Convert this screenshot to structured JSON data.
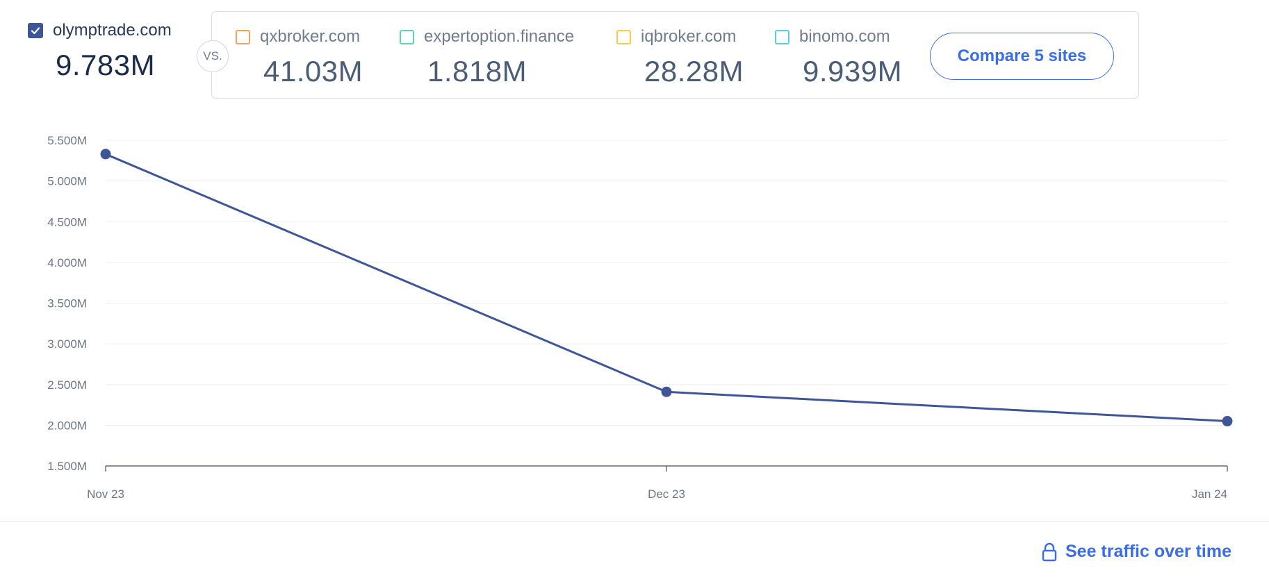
{
  "main_site": {
    "domain": "olymptrade.com",
    "value": "9.783M",
    "checked": true,
    "color": "#3e5697"
  },
  "vs_label": "VS.",
  "competitors": [
    {
      "domain": "qxbroker.com",
      "value": "41.03M",
      "color": "#f7a15a"
    },
    {
      "domain": "expertoption.finance",
      "value": "1.818M",
      "color": "#5fd3b5"
    },
    {
      "domain": "iqbroker.com",
      "value": "28.28M",
      "color": "#ffc847"
    },
    {
      "domain": "binomo.com",
      "value": "9.939M",
      "color": "#54cfe6"
    }
  ],
  "compare_button": {
    "label": "Compare 5 sites"
  },
  "footer_link": {
    "label": "See traffic over time",
    "icon": "lock-icon",
    "color": "#3a6ee8"
  },
  "chart_data": {
    "type": "line",
    "categories": [
      "Nov 23",
      "Dec 23",
      "Jan 24"
    ],
    "series": [
      {
        "values": [
          5330000,
          2410000,
          2050000
        ],
        "color": "#3e5697"
      }
    ],
    "ylim": [
      1500000,
      5500000
    ],
    "yticks": [
      5500000,
      5000000,
      4500000,
      4000000,
      3500000,
      3000000,
      2500000,
      2000000,
      1500000
    ],
    "ytick_labels": [
      "5.500M",
      "5.000M",
      "4.500M",
      "4.000M",
      "3.500M",
      "3.000M",
      "2.500M",
      "2.000M",
      "1.500M"
    ],
    "grid": true
  }
}
